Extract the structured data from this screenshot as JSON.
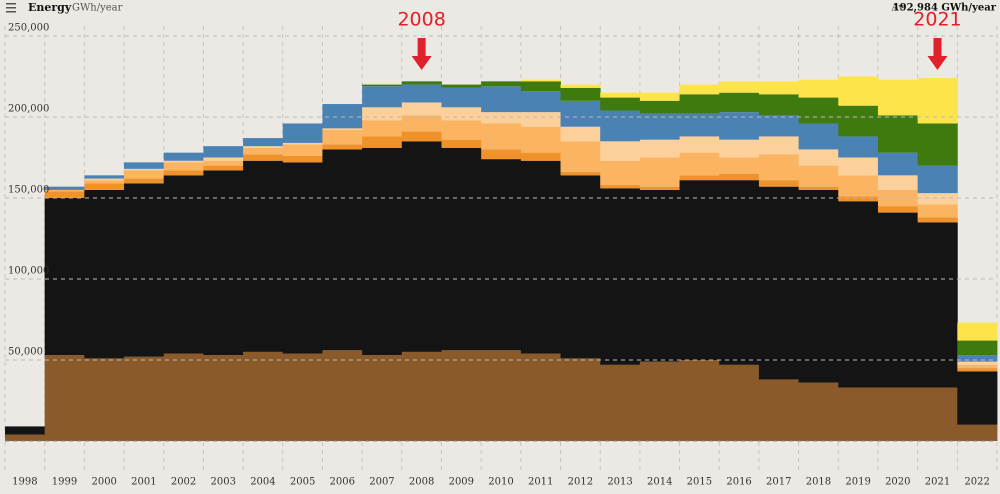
{
  "chart_data": {
    "type": "stacked-bar",
    "title": "Energy",
    "unit": "GWh/year",
    "average_prefix": "Av.",
    "average": "192,984 GWh/year",
    "categories": [
      "1998",
      "1999",
      "2000",
      "2001",
      "2002",
      "2003",
      "2004",
      "2005",
      "2006",
      "2007",
      "2008",
      "2009",
      "2010",
      "2011",
      "2012",
      "2013",
      "2014",
      "2015",
      "2016",
      "2017",
      "2018",
      "2019",
      "2020",
      "2021",
      "2022"
    ],
    "series": [
      {
        "color": "#8b5a2b",
        "values": [
          4000,
          53000,
          51000,
          52000,
          54000,
          53000,
          55000,
          54000,
          56000,
          53000,
          55000,
          56000,
          56000,
          54000,
          51000,
          47000,
          49000,
          50000,
          47000,
          38000,
          36000,
          33000,
          33000,
          33000,
          10000
        ]
      },
      {
        "color": "#141414",
        "values": [
          5000,
          97000,
          104000,
          107000,
          110000,
          114000,
          118000,
          118000,
          124000,
          128000,
          130000,
          125000,
          118000,
          119000,
          113000,
          109000,
          106000,
          111000,
          114000,
          119000,
          119000,
          115000,
          108000,
          102000,
          33000
        ]
      },
      {
        "color": "#f0922a",
        "values": [
          0,
          4000,
          4000,
          3000,
          3000,
          3000,
          4000,
          4000,
          3000,
          7000,
          6000,
          5000,
          6000,
          5000,
          2000,
          2000,
          2000,
          3000,
          4000,
          4000,
          2000,
          3000,
          4000,
          3000,
          2000
        ]
      },
      {
        "color": "#fbb562",
        "values": [
          0,
          1000,
          2000,
          5000,
          5000,
          3000,
          4000,
          7000,
          9000,
          10000,
          10000,
          12000,
          16000,
          16000,
          19000,
          15000,
          18000,
          14000,
          10000,
          16000,
          13000,
          13000,
          10000,
          8000,
          2000
        ]
      },
      {
        "color": "#fcd09a",
        "values": [
          0,
          0,
          1000,
          1000,
          1000,
          2000,
          1000,
          1000,
          1000,
          8000,
          8000,
          8000,
          7000,
          9000,
          9000,
          12000,
          11000,
          10000,
          11000,
          11000,
          10000,
          11000,
          9000,
          7000,
          2000
        ]
      },
      {
        "color": "#4a82b4",
        "values": [
          0,
          2000,
          2000,
          4000,
          5000,
          7000,
          5000,
          12000,
          15000,
          13000,
          11000,
          12000,
          16000,
          13000,
          16000,
          19000,
          16000,
          14000,
          17000,
          13000,
          16000,
          13000,
          14000,
          17000,
          4000
        ]
      },
      {
        "color": "#3f7a0e",
        "values": [
          0,
          0,
          0,
          0,
          0,
          0,
          0,
          0,
          0,
          1000,
          2000,
          2000,
          3000,
          6000,
          8000,
          8000,
          8000,
          12000,
          12000,
          13000,
          16000,
          19000,
          23000,
          26000,
          9000
        ]
      },
      {
        "color": "#fde44a",
        "values": [
          0,
          0,
          0,
          0,
          0,
          0,
          0,
          0,
          0,
          0,
          0,
          0,
          0,
          1000,
          2000,
          3000,
          5000,
          6000,
          7000,
          8000,
          11000,
          18000,
          22000,
          28000,
          11000
        ]
      }
    ],
    "ylim": [
      0,
      250000
    ],
    "yticks": [
      {
        "value": 50000,
        "label": "50,000"
      },
      {
        "value": 100000,
        "label": "100,000"
      },
      {
        "value": 150000,
        "label": "150,000"
      },
      {
        "value": 200000,
        "label": "200,000"
      },
      {
        "value": 250000,
        "label": "250,000"
      }
    ],
    "grid": true,
    "annotations": [
      "2008",
      "2021"
    ],
    "annotation_color": "#e0202a"
  }
}
